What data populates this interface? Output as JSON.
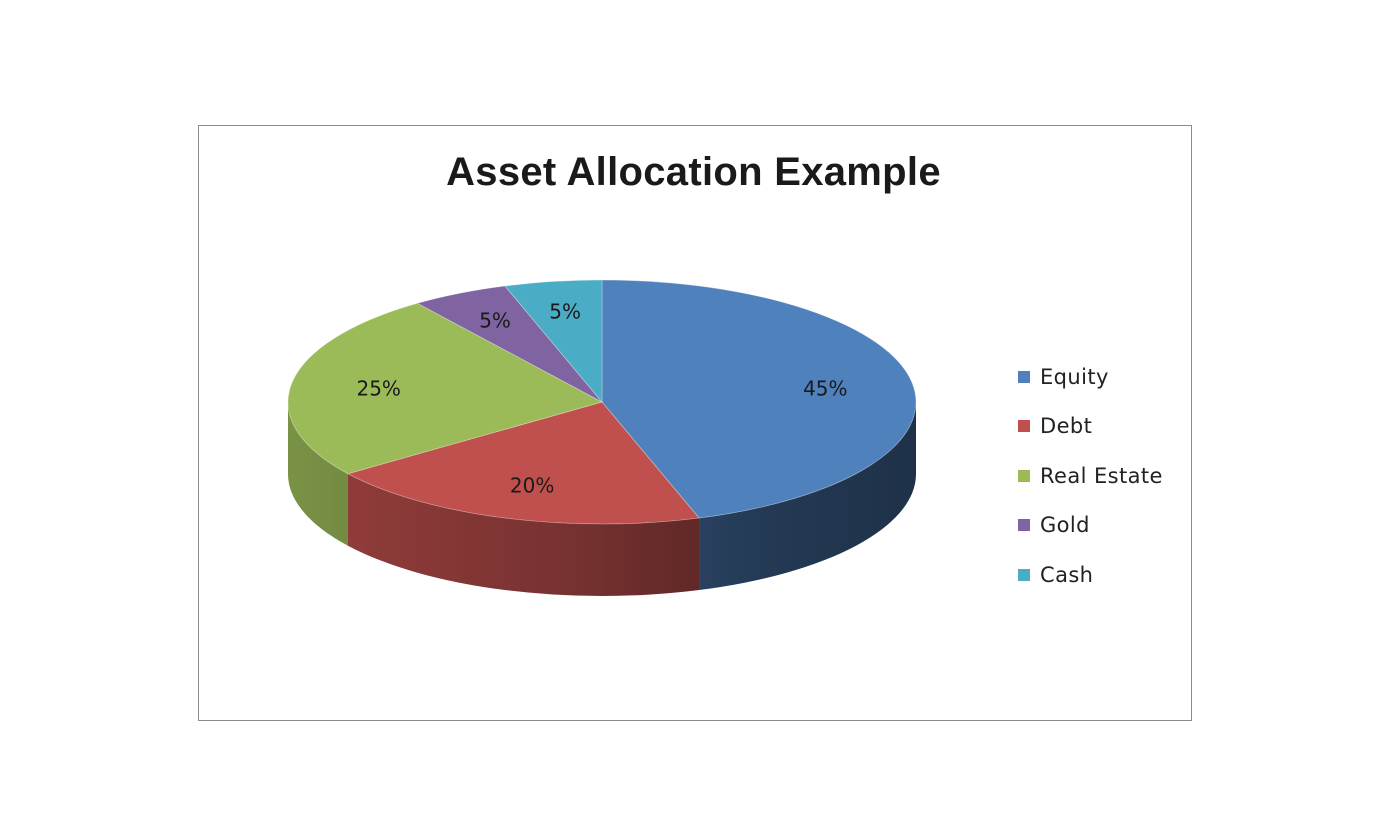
{
  "chart_data": {
    "type": "pie",
    "title": "Asset Allocation Example",
    "categories": [
      "Equity",
      "Debt",
      "Real Estate",
      "Gold",
      "Cash"
    ],
    "values": [
      45,
      20,
      25,
      5,
      5
    ],
    "data_labels": [
      "45%",
      "20%",
      "25%",
      "5%",
      "5%"
    ],
    "colors": [
      "#4f81bd",
      "#c0504d",
      "#9bbb59",
      "#8064a2",
      "#4bacc6"
    ],
    "style": "3d",
    "legend_position": "right"
  }
}
